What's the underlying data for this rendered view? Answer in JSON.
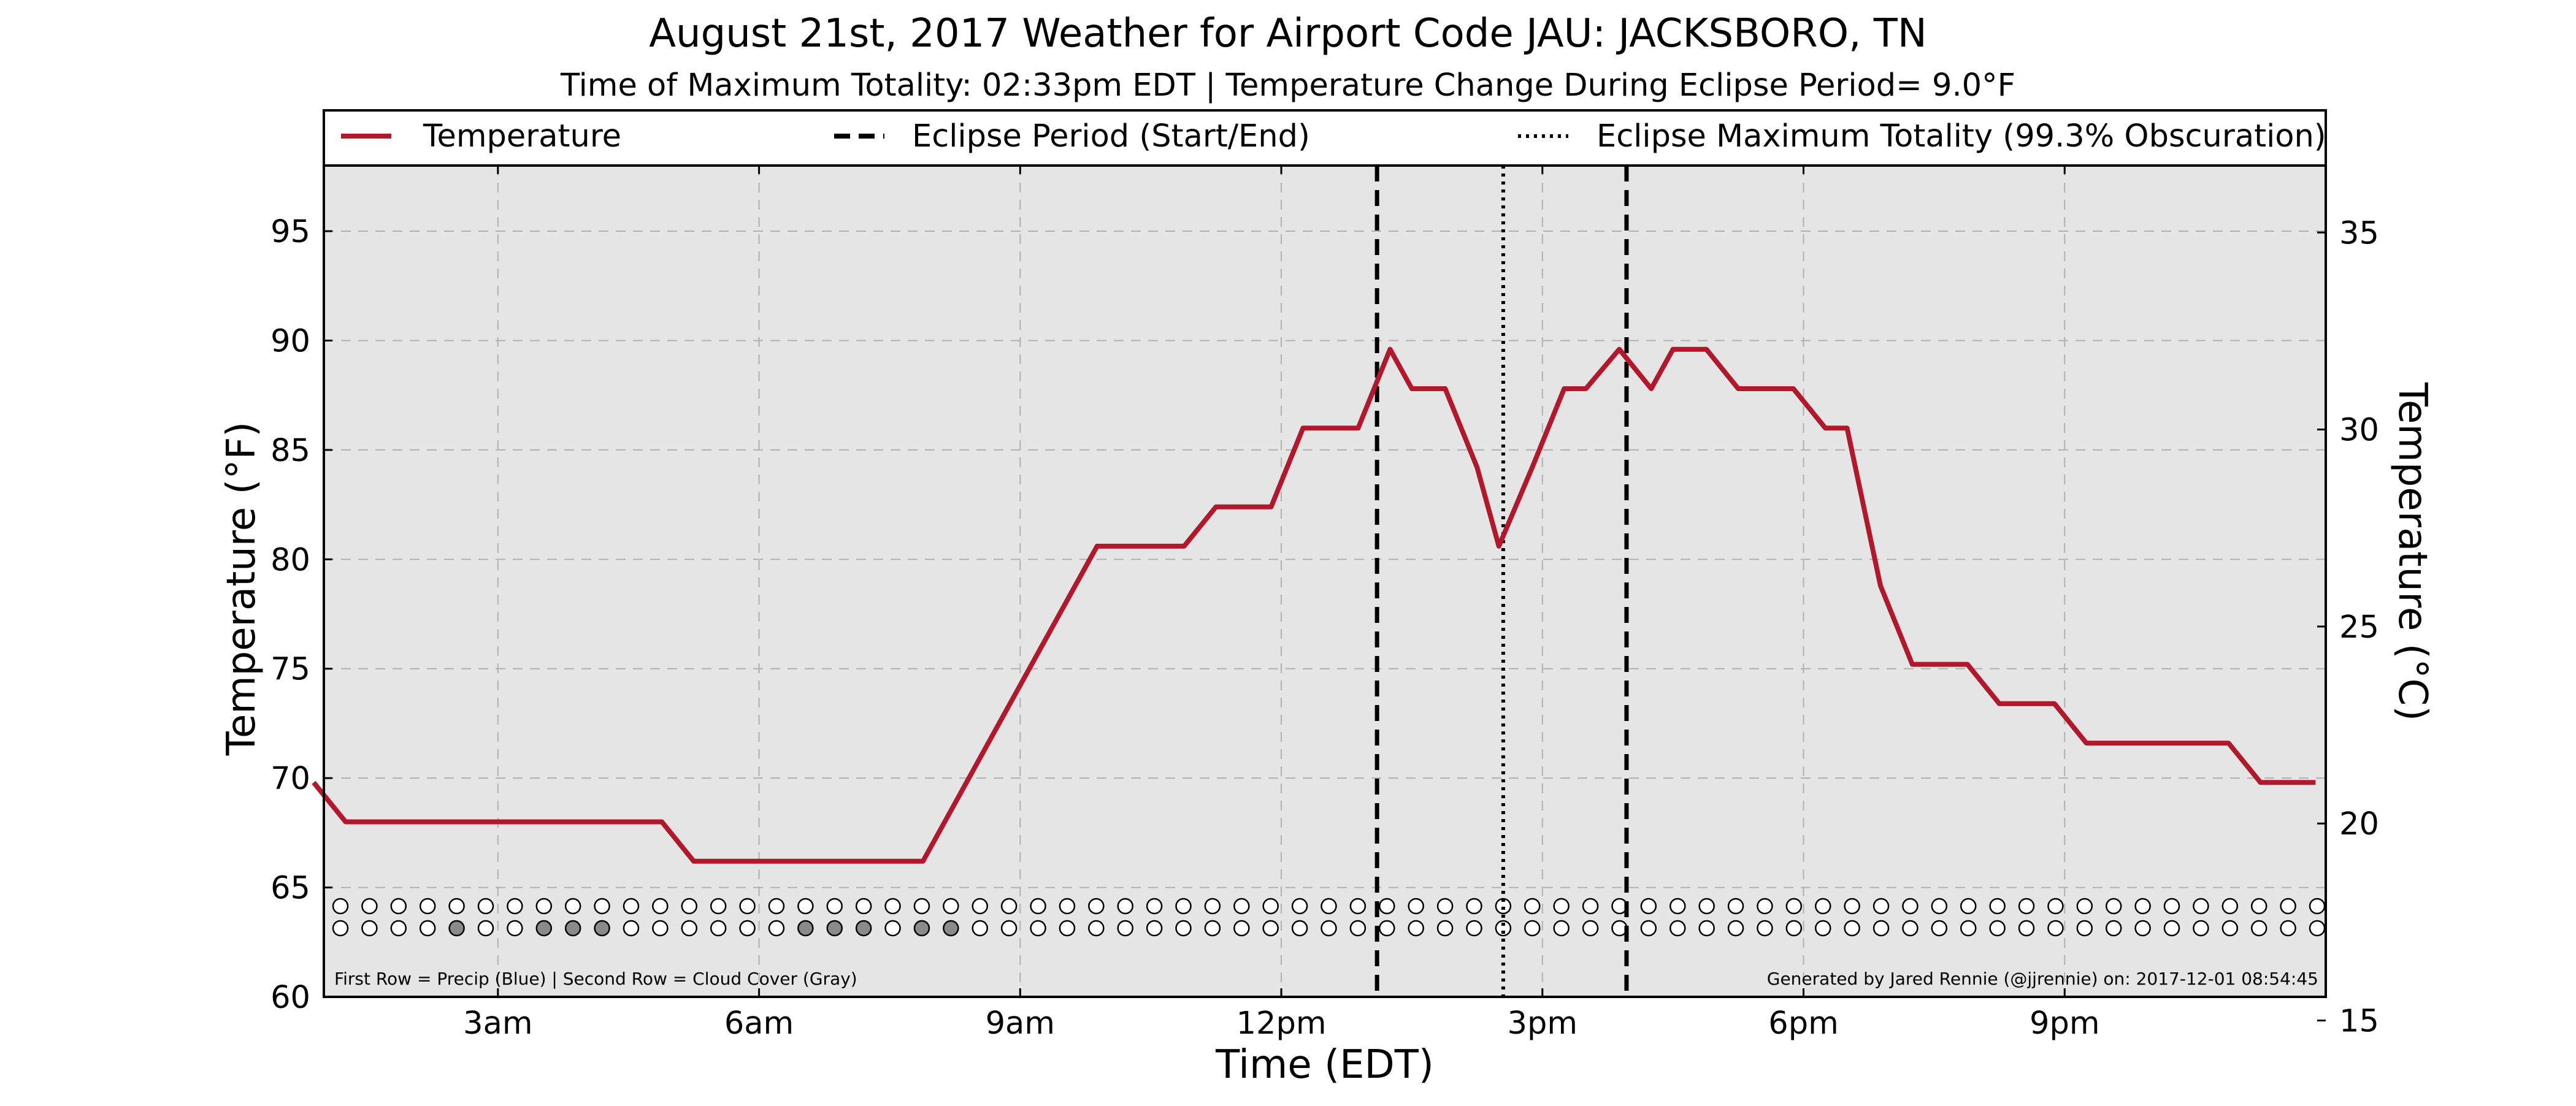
{
  "chart_data": {
    "type": "line",
    "title": "August 21st, 2017 Weather for Airport Code JAU: JACKSBORO, TN",
    "subtitle": "Time of Maximum Totality: 02:33pm EDT | Temperature Change During Eclipse Period= 9.0$^\\circ$F",
    "subtitle_display": "Time of Maximum Totality: 02:33pm EDT | Temperature Change During Eclipse Period= 9.0°F",
    "xlabel": "Time (EDT)",
    "ylabel": "Temperature (°F)",
    "ylabel_right": "Temperature (°C)",
    "xlim_hours": [
      1,
      24
    ],
    "ylim": [
      60,
      98
    ],
    "ylim_right": [
      15.6,
      36.7
    ],
    "x_ticks": [
      {
        "hour": 3,
        "label": "3am"
      },
      {
        "hour": 6,
        "label": "6am"
      },
      {
        "hour": 9,
        "label": "9am"
      },
      {
        "hour": 12,
        "label": "12pm"
      },
      {
        "hour": 15,
        "label": "3pm"
      },
      {
        "hour": 18,
        "label": "6pm"
      },
      {
        "hour": 21,
        "label": "9pm"
      }
    ],
    "y_ticks": [
      60,
      65,
      70,
      75,
      80,
      85,
      90,
      95
    ],
    "y_ticks_right": [
      15,
      20,
      25,
      30,
      35
    ],
    "grid": true,
    "legend": {
      "placement": "top",
      "entries": [
        {
          "label": "Temperature",
          "style": "solid",
          "color": "#b2182b"
        },
        {
          "label": "Eclipse Period (Start/End)",
          "style": "dashed",
          "color": "#000000"
        },
        {
          "label": "Eclipse Maximum Totality (99.3% Obscuration)",
          "style": "dotted",
          "color": "#000000"
        }
      ]
    },
    "series": [
      {
        "name": "Temperature",
        "color": "#b2182b",
        "x": [
          "00:53",
          "01:15",
          "01:53",
          "02:53",
          "03:53",
          "04:53",
          "05:15",
          "05:53",
          "06:53",
          "07:53",
          "08:53",
          "09:53",
          "10:53",
          "11:15",
          "11:53",
          "12:15",
          "12:53",
          "13:15",
          "13:30",
          "13:53",
          "14:15",
          "14:30",
          "14:53",
          "15:15",
          "15:30",
          "15:53",
          "16:15",
          "16:30",
          "16:53",
          "17:15",
          "17:30",
          "17:53",
          "18:15",
          "18:30",
          "18:53",
          "19:15",
          "19:53",
          "20:15",
          "20:53",
          "21:15",
          "21:53",
          "22:15",
          "22:53",
          "23:15",
          "23:53"
        ],
        "values": [
          69.8,
          68.0,
          68.0,
          68.0,
          68.0,
          68.0,
          66.2,
          66.2,
          66.2,
          66.2,
          73.4,
          80.6,
          80.6,
          82.4,
          82.4,
          86.0,
          86.0,
          89.6,
          87.8,
          87.8,
          84.2,
          80.6,
          84.2,
          87.8,
          87.8,
          89.6,
          87.8,
          89.6,
          89.6,
          87.8,
          87.8,
          87.8,
          86.0,
          86.0,
          78.8,
          75.2,
          75.2,
          73.4,
          73.4,
          71.6,
          71.6,
          71.6,
          71.6,
          69.8,
          69.8
        ]
      }
    ],
    "eclipse_start": "13:06",
    "eclipse_end": "15:58",
    "eclipse_max": "14:33",
    "obscuration": "99.3%",
    "indicator_rows": {
      "precip_gray_indices": [],
      "cloud_gray_indices": [
        4,
        7,
        8,
        9,
        16,
        17,
        18,
        20,
        21
      ],
      "count": 69
    },
    "footnote_left": "First Row = Precip (Blue) | Second Row = Cloud Cover (Gray)",
    "footnote_right": "Generated by Jared Rennie (@jjrennie) on: 2017-12-01 08:54:45"
  }
}
